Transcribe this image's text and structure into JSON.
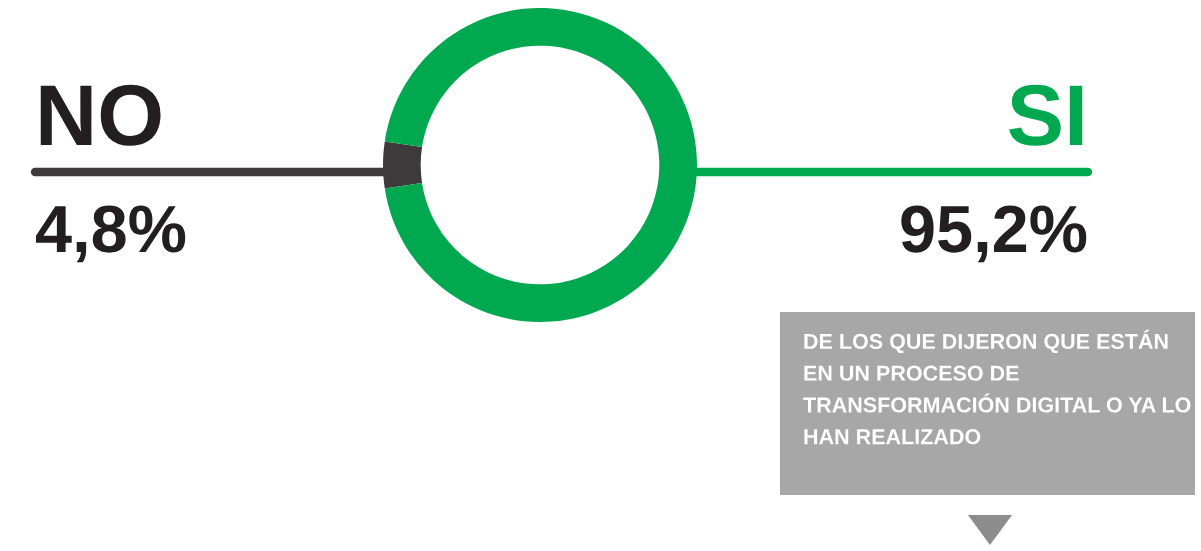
{
  "chart_data": {
    "type": "donut",
    "categories": [
      "NO",
      "SI"
    ],
    "values": [
      4.8,
      95.2
    ],
    "colors": [
      "#3d3a3b",
      "#00a94f"
    ],
    "value_labels": [
      "4,8%",
      "95,2%"
    ],
    "annotations": [
      "DE LOS QUE DIJERON QUE ESTÁN EN UN PROCESO DE TRANSFORMACIÓN DIGITAL O YA LO HAN REALIZADO"
    ]
  }
}
